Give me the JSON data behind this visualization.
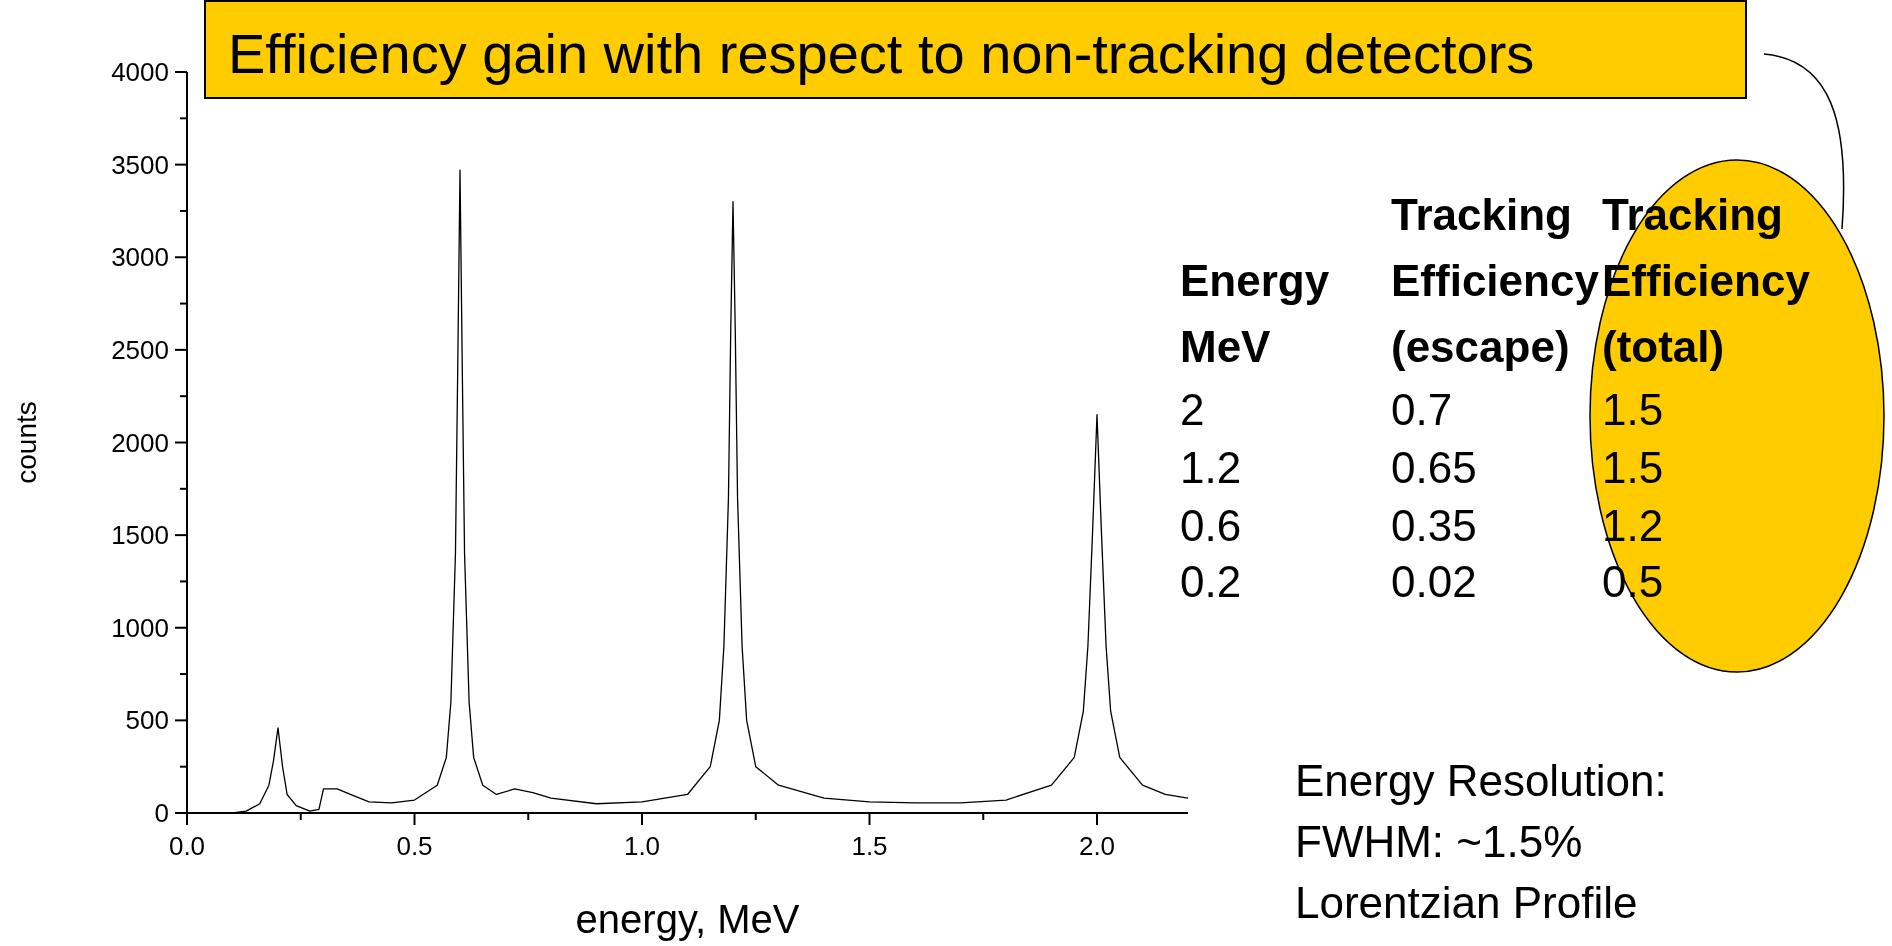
{
  "chart_data": {
    "type": "line",
    "xlabel": "energy, MeV",
    "ylabel": "counts",
    "x": [
      0,
      0.1,
      0.13,
      0.16,
      0.18,
      0.19,
      0.2,
      0.21,
      0.22,
      0.24,
      0.27,
      0.29,
      0.3,
      0.33,
      0.37,
      0.4,
      0.45,
      0.5,
      0.55,
      0.57,
      0.58,
      0.59,
      0.595,
      0.6,
      0.605,
      0.61,
      0.62,
      0.63,
      0.65,
      0.68,
      0.72,
      0.76,
      0.8,
      0.9,
      1.0,
      1.1,
      1.15,
      1.17,
      1.18,
      1.19,
      1.195,
      1.2,
      1.205,
      1.21,
      1.22,
      1.23,
      1.25,
      1.3,
      1.4,
      1.5,
      1.6,
      1.7,
      1.8,
      1.9,
      1.95,
      1.97,
      1.98,
      1.99,
      2.0,
      2.01,
      2.02,
      2.03,
      2.05,
      2.1,
      2.15,
      2.2
    ],
    "series": [
      {
        "color": "#000000",
        "values": [
          0,
          0,
          10,
          50,
          150,
          280,
          460,
          250,
          100,
          40,
          10,
          20,
          130,
          130,
          90,
          60,
          55,
          70,
          150,
          300,
          600,
          1400,
          2400,
          3470,
          2400,
          1400,
          600,
          300,
          150,
          100,
          130,
          110,
          80,
          50,
          60,
          100,
          250,
          500,
          900,
          1700,
          2600,
          3300,
          2600,
          1700,
          900,
          500,
          250,
          150,
          80,
          60,
          55,
          55,
          70,
          150,
          300,
          550,
          900,
          1500,
          2150,
          1500,
          900,
          550,
          300,
          150,
          100,
          80
        ]
      }
    ],
    "xlim": [
      0,
      2.2
    ],
    "xticks": [
      {
        "value": 0,
        "label": "0.0"
      },
      {
        "value": 0.25,
        "label": null
      },
      {
        "value": 0.5,
        "label": "0.5"
      },
      {
        "value": 0.75,
        "label": null
      },
      {
        "value": 1,
        "label": "1.0"
      },
      {
        "value": 1.25,
        "label": null
      },
      {
        "value": 1.5,
        "label": "1.5"
      },
      {
        "value": 1.75,
        "label": null
      },
      {
        "value": 2,
        "label": "2.0"
      }
    ],
    "ylim": [
      0,
      4000
    ],
    "yticks": [
      0,
      {
        "value": 250,
        "label": null
      },
      500,
      {
        "value": 750,
        "label": null
      },
      1000,
      {
        "value": 1250,
        "label": null
      },
      1500,
      {
        "value": 1750,
        "label": null
      },
      2000,
      {
        "value": 2250,
        "label": null
      },
      2500,
      {
        "value": 2750,
        "label": null
      },
      3000,
      {
        "value": 3250,
        "label": null
      },
      3500,
      {
        "value": 3750,
        "label": null
      },
      4000
    ],
    "grid": false,
    "marker": "none",
    "line_style": "solid",
    "annotations": [
      "Efficiency gain with respect to non-tracking detectors",
      "Energy\nMeV",
      "Tracking\nEfficiency\n(escape)",
      "Tracking\nEfficiency\n(total)",
      "2",
      "0.7",
      "1.5",
      "1.2",
      "0.65",
      "1.5",
      "0.6",
      "0.35",
      "1.2",
      "0.2",
      "0.02",
      "0.5",
      "Energy Resolution:\nFWHM: ~1.5%\nLorentzian Profile"
    ]
  }
}
